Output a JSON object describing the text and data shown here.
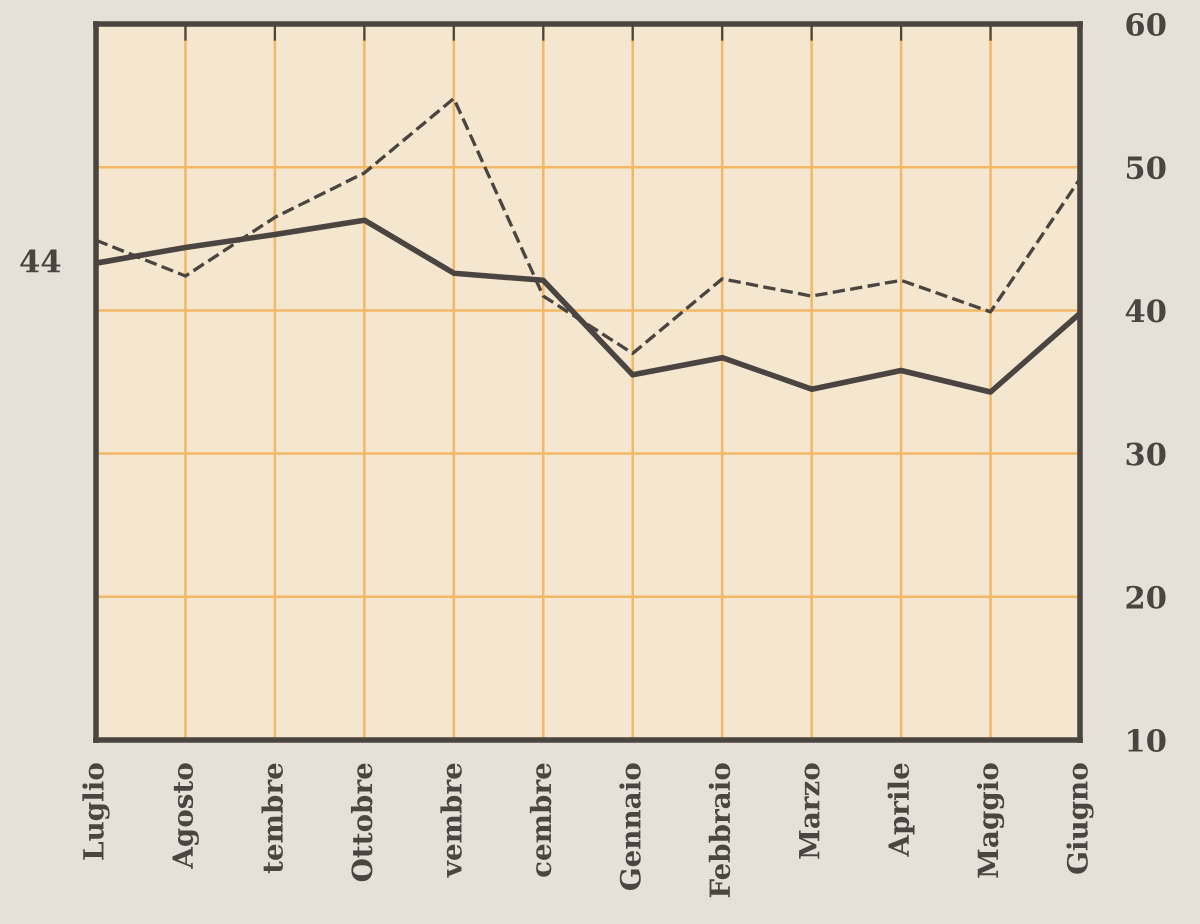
{
  "chart_data": {
    "type": "line",
    "categories": [
      "Luglio",
      "Agosto",
      "tembre",
      "Ottobre",
      "vembre",
      "cembre",
      "Gennaio",
      "Febbraio",
      "Marzo",
      "Aprile",
      "Maggio",
      "Giugno"
    ],
    "series": [
      {
        "color": "#4a4540",
        "line_style": "solid",
        "values": [
          43.3,
          44.4,
          45.3,
          46.3,
          42.6,
          42.1,
          35.5,
          36.7,
          34.5,
          35.8,
          34.3,
          39.8
        ]
      },
      {
        "color": "#4a4540",
        "line_style": "dashed",
        "values": [
          44.9,
          42.4,
          46.5,
          49.6,
          54.8,
          41.0,
          37.0,
          42.2,
          41.0,
          42.1,
          39.9,
          49.2
        ]
      }
    ],
    "ylim": [
      10,
      60
    ],
    "yticks": [
      10,
      20,
      30,
      40,
      50,
      60
    ],
    "grid": true,
    "annotations": [
      "44"
    ]
  }
}
